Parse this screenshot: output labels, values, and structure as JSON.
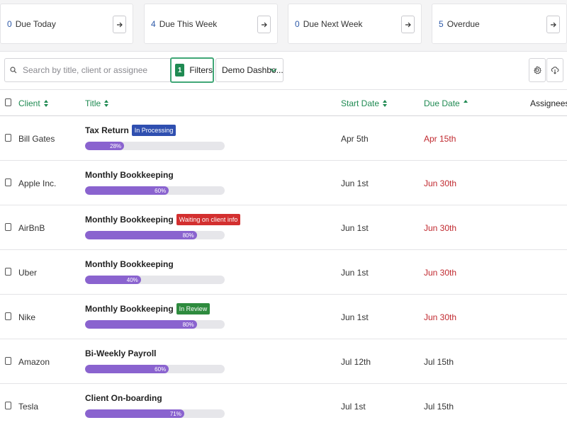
{
  "summary": {
    "cards": [
      {
        "count": "0",
        "label": "Due Today"
      },
      {
        "count": "4",
        "label": "Due This Week"
      },
      {
        "count": "0",
        "label": "Due Next Week"
      },
      {
        "count": "5",
        "label": "Overdue"
      }
    ]
  },
  "toolbar": {
    "search_placeholder": "Search by title, client or assignee",
    "filters_count": "1",
    "filters_label": "Filters",
    "dashboard_select": "Demo Dashbo..."
  },
  "table": {
    "headers": {
      "client": "Client",
      "title": "Title",
      "start_date": "Start Date",
      "due_date": "Due Date",
      "assignees": "Assignees"
    },
    "rows": [
      {
        "client": "Bill Gates",
        "title": "Tax Return",
        "status": "In Processing",
        "status_color": "#2f4fb0",
        "progress": 28,
        "progress_label": "28%",
        "start": "Apr 5th",
        "due": "Apr 15th",
        "overdue": true
      },
      {
        "client": "Apple Inc.",
        "title": "Monthly Bookkeeping",
        "status": "",
        "status_color": "",
        "progress": 60,
        "progress_label": "60%",
        "start": "Jun 1st",
        "due": "Jun 30th",
        "overdue": true
      },
      {
        "client": "AirBnB",
        "title": "Monthly Bookkeeping",
        "status": "Waiting on client info",
        "status_color": "#d32f2f",
        "progress": 80,
        "progress_label": "80%",
        "start": "Jun 1st",
        "due": "Jun 30th",
        "overdue": true
      },
      {
        "client": "Uber",
        "title": "Monthly Bookkeeping",
        "status": "",
        "status_color": "",
        "progress": 40,
        "progress_label": "40%",
        "start": "Jun 1st",
        "due": "Jun 30th",
        "overdue": true
      },
      {
        "client": "Nike",
        "title": "Monthly Bookkeeping",
        "status": "In Review",
        "status_color": "#2e8b3e",
        "progress": 80,
        "progress_label": "80%",
        "start": "Jun 1st",
        "due": "Jun 30th",
        "overdue": true
      },
      {
        "client": "Amazon",
        "title": "Bi-Weekly Payroll",
        "status": "",
        "status_color": "",
        "progress": 60,
        "progress_label": "60%",
        "start": "Jul 12th",
        "due": "Jul 15th",
        "overdue": false
      },
      {
        "client": "Tesla",
        "title": "Client On-boarding",
        "status": "",
        "status_color": "",
        "progress": 71,
        "progress_label": "71%",
        "start": "Jul 1st",
        "due": "Jul 15th",
        "overdue": false
      }
    ]
  },
  "colors": {
    "accent_green": "#1f8a52",
    "count_blue": "#2e5aa8",
    "progress_purple": "#8a63cf",
    "overdue_red": "#c0292f"
  }
}
